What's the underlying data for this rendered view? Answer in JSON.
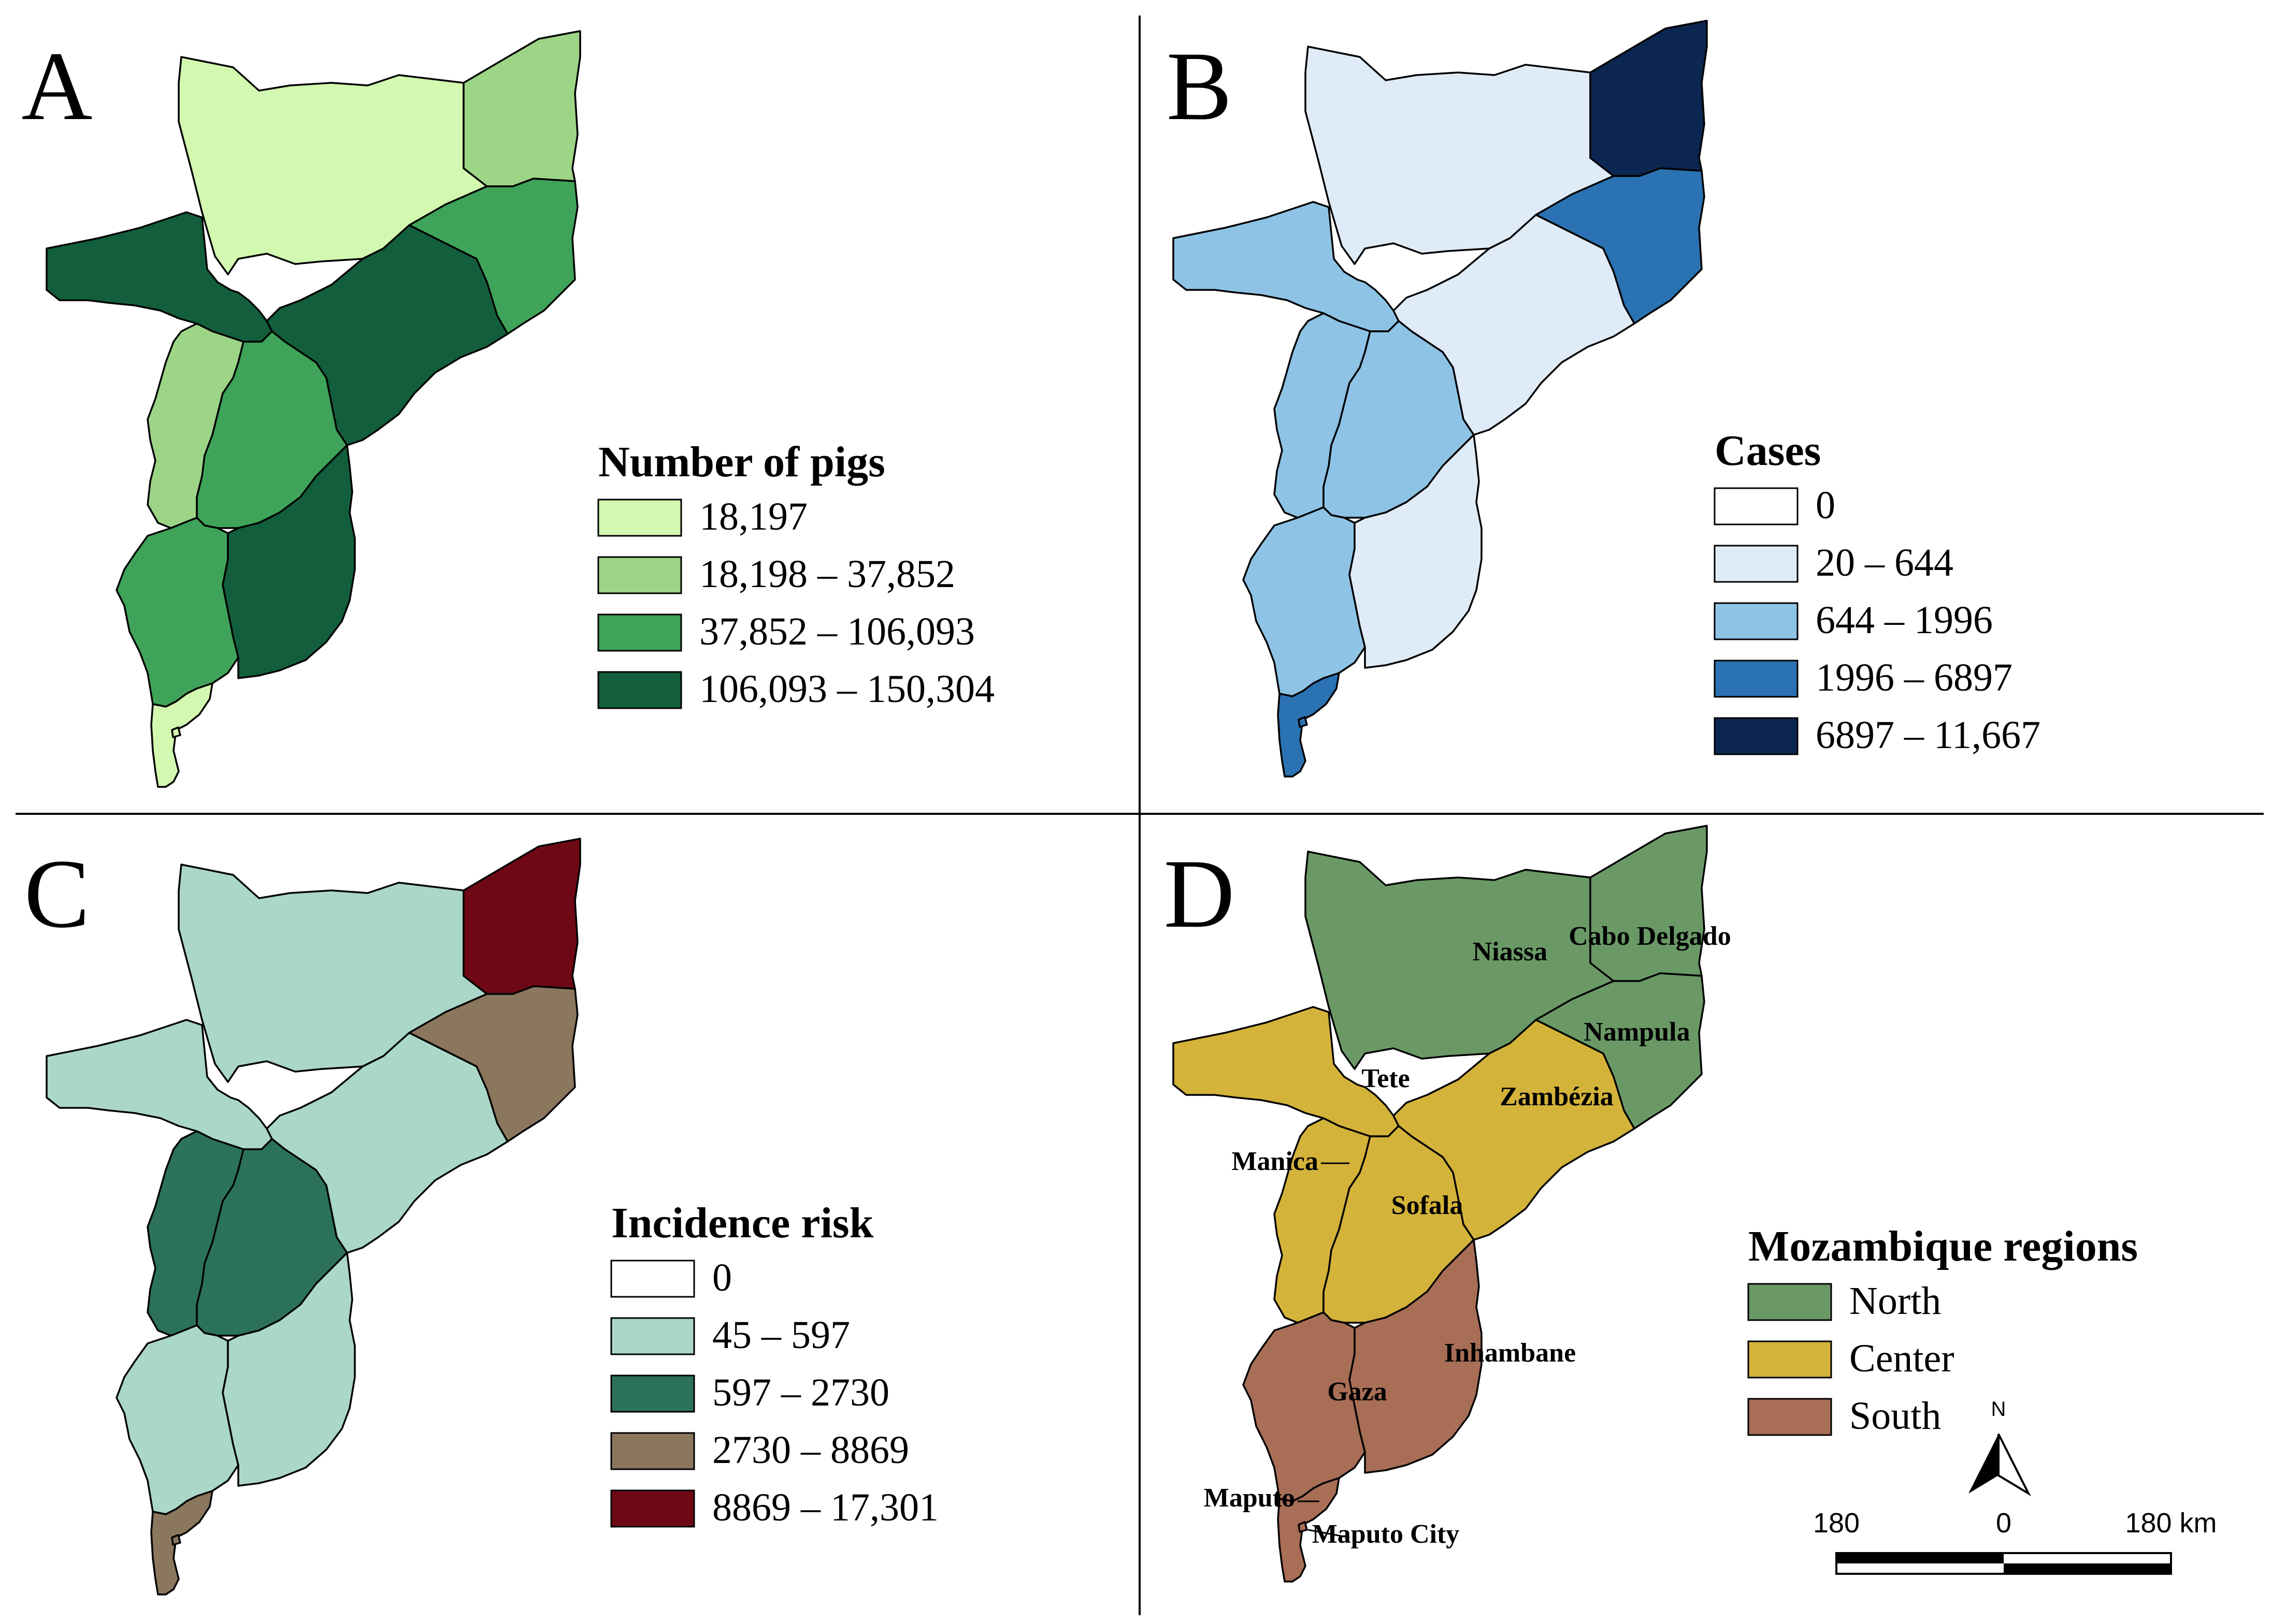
{
  "panels": [
    {
      "letter": "A",
      "legend_title": "Number of pigs",
      "legend": [
        {
          "label": "18,197",
          "color": "#d3f8b0"
        },
        {
          "label": "18,198 – 37,852",
          "color": "#9dd587"
        },
        {
          "label": "37,852 – 106,093",
          "color": "#3fa459"
        },
        {
          "label": "106,093 – 150,304",
          "color": "#135e3c"
        }
      ],
      "fills": {
        "niassa": "#d3f8b0",
        "cabo_delgado": "#9dd587",
        "nampula": "#3fa459",
        "tete": "#135e3c",
        "zambezia": "#135e3c",
        "manica": "#9dd587",
        "sofala": "#3fa459",
        "inhambane": "#135e3c",
        "gaza": "#3fa459",
        "maputo": "#d3f8b0",
        "maputo_city": "#d3f8b0"
      }
    },
    {
      "letter": "B",
      "legend_title": "Cases",
      "legend": [
        {
          "label": "0",
          "color": "#ffffff"
        },
        {
          "label": "20 – 644",
          "color": "#dfebf7"
        },
        {
          "label": "644 – 1996",
          "color": "#8ec3e5"
        },
        {
          "label": "1996 – 6897",
          "color": "#2a72b1"
        },
        {
          "label": "6897 – 11,667",
          "color": "#0b2650"
        }
      ],
      "fills": {
        "niassa": "#dfebf7",
        "cabo_delgado": "#0b2650",
        "nampula": "#2a72b1",
        "tete": "#8ec3e5",
        "zambezia": "#dfebf7",
        "manica": "#8ec3e5",
        "sofala": "#8ec3e5",
        "inhambane": "#dfebf7",
        "gaza": "#8ec3e5",
        "maputo": "#2a72b1",
        "maputo_city": "#2a72b1"
      }
    },
    {
      "letter": "C",
      "legend_title": "Incidence risk",
      "legend": [
        {
          "label": "0",
          "color": "#ffffff"
        },
        {
          "label": "45 – 597",
          "color": "#aad7c7"
        },
        {
          "label": "597 – 2730",
          "color": "#2b7259"
        },
        {
          "label": "2730 – 8869",
          "color": "#8b765e"
        },
        {
          "label": "8869 – 17,301",
          "color": "#6f0815"
        }
      ],
      "fills": {
        "niassa": "#aad7c7",
        "cabo_delgado": "#6f0815",
        "nampula": "#8b765e",
        "tete": "#aad7c7",
        "zambezia": "#aad7c7",
        "manica": "#2b7259",
        "sofala": "#2b7259",
        "inhambane": "#aad7c7",
        "gaza": "#aad7c7",
        "maputo": "#8b765e",
        "maputo_city": "#8b765e"
      }
    },
    {
      "letter": "D",
      "legend_title": "Mozambique regions",
      "legend": [
        {
          "label": "North",
          "color": "#6a9966"
        },
        {
          "label": "Center",
          "color": "#d4b33a"
        },
        {
          "label": "South",
          "color": "#a86e56"
        }
      ],
      "fills": {
        "niassa": "#6a9966",
        "cabo_delgado": "#6a9966",
        "nampula": "#6a9966",
        "tete": "#d4b33a",
        "zambezia": "#d4b33a",
        "manica": "#d4b33a",
        "sofala": "#d4b33a",
        "inhambane": "#a86e56",
        "gaza": "#a86e56",
        "maputo": "#a86e56",
        "maputo_city": "#a86e56"
      },
      "province_labels": {
        "niassa": "Niassa",
        "cabo_delgado": "Cabo Delgado",
        "nampula": "Nampula",
        "tete": "Tete",
        "zambezia": "Zambézia",
        "manica": "Manica",
        "sofala": "Sofala",
        "inhambane": "Inhambane",
        "gaza": "Gaza",
        "maputo": "Maputo",
        "maputo_city": "Maputo City"
      }
    }
  ],
  "north_arrow": {
    "label": "N"
  },
  "scale_bar": {
    "labels": [
      "180",
      "0",
      "180 km"
    ]
  }
}
